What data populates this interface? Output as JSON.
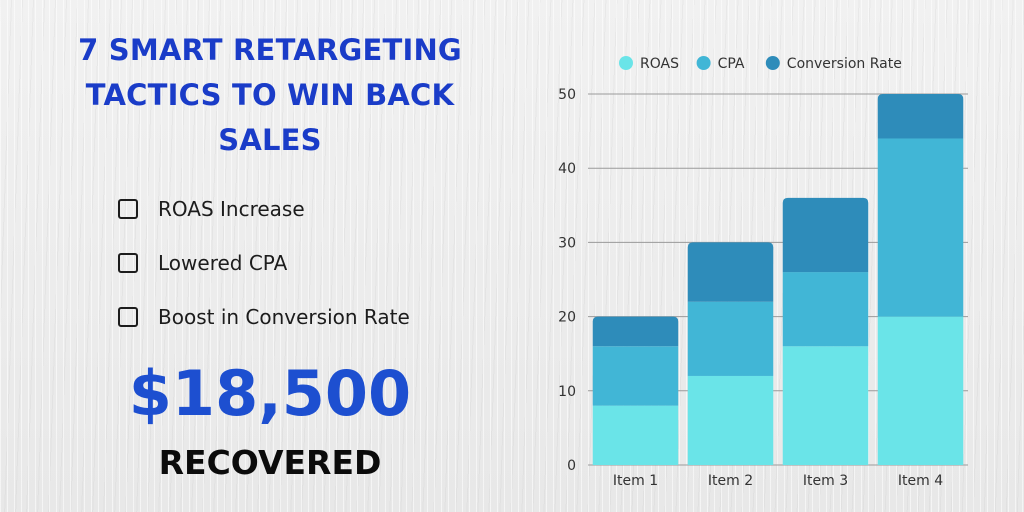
{
  "headline": {
    "line1": "7 SMART RETARGETING",
    "line2": "TACTICS TO WIN BACK",
    "line3": "SALES"
  },
  "checklist": [
    {
      "label": "ROAS Increase"
    },
    {
      "label": "Lowered CPA"
    },
    {
      "label": "Boost in Conversion Rate"
    }
  ],
  "amount": "$18,500",
  "amount_caption": "RECOVERED",
  "colors": {
    "title": "#1a3cc8",
    "amount": "#1d4fd0",
    "roas": "#6ae4e8",
    "cpa": "#41b6d6",
    "conversion_rate": "#2e8cba"
  },
  "chart_data": {
    "type": "bar",
    "stacked": true,
    "categories": [
      "Item 1",
      "Item 2",
      "Item 3",
      "Item 4"
    ],
    "series": [
      {
        "name": "ROAS",
        "values": [
          8,
          12,
          16,
          20
        ],
        "color": "#6ae4e8"
      },
      {
        "name": "CPA",
        "values": [
          8,
          10,
          10,
          24
        ],
        "color": "#41b6d6"
      },
      {
        "name": "Conversion Rate",
        "values": [
          4,
          8,
          10,
          6
        ],
        "color": "#2e8cba"
      }
    ],
    "ylim": [
      0,
      50
    ],
    "yticks": [
      0,
      10,
      20,
      30,
      40,
      50
    ],
    "grid": true,
    "legend": "top",
    "title": "",
    "xlabel": "",
    "ylabel": ""
  }
}
